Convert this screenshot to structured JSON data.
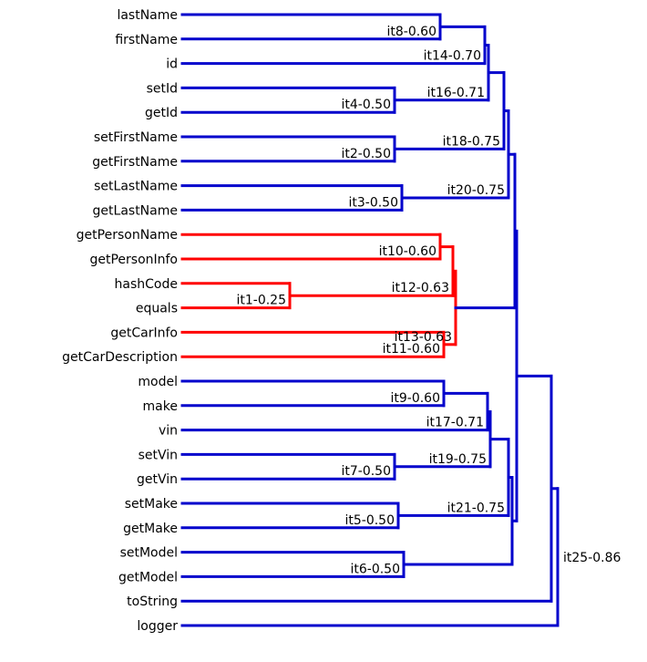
{
  "leaves": [
    "lastName",
    "firstName",
    "id",
    "setId",
    "getId",
    "setFirstName",
    "getFirstName",
    "setLastName",
    "getLastName",
    "getPersonName",
    "getPersonInfo",
    "hashCode",
    "equals",
    "getCarInfo",
    "getCarDescription",
    "model",
    "make",
    "vin",
    "setVin",
    "getVin",
    "setMake",
    "getMake",
    "setModel",
    "getModel",
    "toString",
    "logger"
  ],
  "merges": [
    {
      "label": "it8-0.60"
    },
    {
      "label": "it14-0.70"
    },
    {
      "label": "it4-0.50"
    },
    {
      "label": "it16-0.71"
    },
    {
      "label": "it2-0.50"
    },
    {
      "label": "it18-0.75"
    },
    {
      "label": "it3-0.50"
    },
    {
      "label": "it20-0.75"
    },
    {
      "label": "it10-0.60"
    },
    {
      "label": "it1-0.25"
    },
    {
      "label": "it12-0.63"
    },
    {
      "label": "it11-0.60"
    },
    {
      "label": "it13-0.63"
    },
    {
      "label": "it9-0.60"
    },
    {
      "label": "it17-0.71"
    },
    {
      "label": "it7-0.50"
    },
    {
      "label": "it19-0.75"
    },
    {
      "label": "it5-0.50"
    },
    {
      "label": "it21-0.75"
    },
    {
      "label": "it6-0.50"
    },
    {
      "label": "it25-0.86"
    }
  ]
}
